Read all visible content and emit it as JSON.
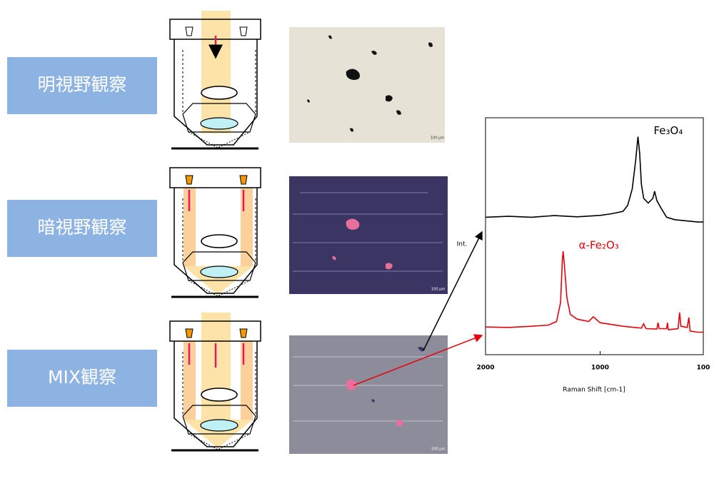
{
  "modes": [
    "明視野観察",
    "暗視野観察",
    "MIX観察"
  ],
  "scale_label": "100 μm",
  "chart_data": {
    "type": "line",
    "x_label": "Raman Shift [cm-1]",
    "y_label": "Int.",
    "xlim": [
      2000,
      100
    ],
    "xticks": [
      2000,
      1000,
      100
    ],
    "ylim": [
      0,
      100
    ],
    "series": [
      {
        "name": "Fe₃O₄",
        "color": "#000000",
        "x": [
          2000,
          1800,
          1600,
          1400,
          1200,
          1000,
          900,
          800,
          760,
          720,
          690,
          670,
          655,
          640,
          620,
          580,
          540,
          525,
          505,
          470,
          420,
          350,
          250,
          150,
          100
        ],
        "values": [
          58,
          58.4,
          58,
          58.7,
          58.2,
          58.8,
          59.5,
          60.5,
          63,
          70,
          82,
          92,
          85,
          72,
          66,
          64,
          66,
          69,
          65,
          62,
          58,
          57,
          56.5,
          56,
          56
        ]
      },
      {
        "name": "α-Fe₂O₃",
        "color": "#e8000b",
        "x": [
          2000,
          1800,
          1600,
          1450,
          1380,
          1345,
          1330,
          1323,
          1312,
          1290,
          1260,
          1200,
          1100,
          1060,
          1000,
          800,
          640,
          620,
          600,
          505,
          495,
          485,
          420,
          413,
          405,
          320,
          307,
          295,
          240,
          226,
          215,
          150,
          100
        ],
        "values": [
          11.7,
          11.5,
          12,
          12.5,
          14,
          22,
          40,
          43.7,
          38,
          24,
          17,
          15,
          14,
          16,
          13.5,
          12,
          11.2,
          13,
          11,
          10.8,
          13.5,
          11,
          11,
          13.5,
          10.5,
          11,
          17.8,
          12,
          11.5,
          15.7,
          10,
          9.5,
          9.5
        ]
      }
    ]
  }
}
